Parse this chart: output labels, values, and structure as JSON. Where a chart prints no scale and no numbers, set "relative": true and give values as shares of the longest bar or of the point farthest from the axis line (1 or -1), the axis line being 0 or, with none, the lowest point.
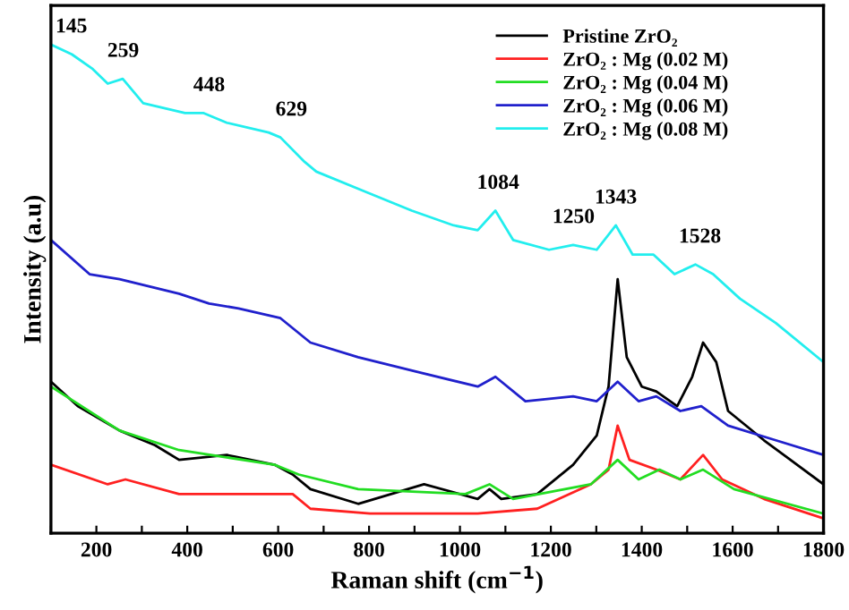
{
  "chart_data": {
    "type": "line",
    "relative": true,
    "xlabel": "Raman shift (cm$^{−1}$)",
    "ylabel": "Intensity (a.u)",
    "xlim": [
      100,
      1800
    ],
    "xticks": [
      {
        "value": 100,
        "label": null
      },
      200,
      {
        "value": 300,
        "label": null
      },
      400,
      {
        "value": 500,
        "label": null
      },
      600,
      {
        "value": 700,
        "label": null
      },
      800,
      {
        "value": 900,
        "label": null
      },
      1000,
      {
        "value": 1100,
        "label": null
      },
      1200,
      {
        "value": 1300,
        "label": null
      },
      1400,
      {
        "value": 1500,
        "label": null
      },
      1600,
      {
        "value": 1700,
        "label": null
      },
      1800
    ],
    "tick_labels": "x",
    "grid": false,
    "legend": "top right",
    "marker": "none",
    "line_style": "solid",
    "series": [
      {
        "name": "Pristine ZrO₂",
        "color": "#000000",
        "x": [
          100,
          159,
          251,
          329,
          382,
          487,
          592,
          632,
          671,
          776,
          921,
          1039,
          1065,
          1091,
          1170,
          1249,
          1301,
          1327,
          1347,
          1367,
          1400,
          1432,
          1478,
          1511,
          1535,
          1564,
          1590,
          1669,
          1800
        ],
        "values": [
          0.31,
          0.26,
          0.21,
          0.18,
          0.15,
          0.16,
          0.14,
          0.12,
          0.09,
          0.06,
          0.1,
          0.07,
          0.09,
          0.07,
          0.08,
          0.14,
          0.2,
          0.3,
          0.52,
          0.36,
          0.3,
          0.29,
          0.26,
          0.32,
          0.39,
          0.35,
          0.25,
          0.19,
          0.1
        ]
      },
      {
        "name": "ZrO₂ : Mg (0.02 M)",
        "color": "#ff2020",
        "x": [
          100,
          225,
          264,
          382,
          632,
          671,
          802,
          1039,
          1170,
          1288,
          1327,
          1347,
          1373,
          1432,
          1485,
          1535,
          1577,
          1669,
          1800
        ],
        "values": [
          0.14,
          0.1,
          0.11,
          0.08,
          0.08,
          0.05,
          0.04,
          0.04,
          0.05,
          0.1,
          0.13,
          0.22,
          0.15,
          0.13,
          0.11,
          0.16,
          0.11,
          0.07,
          0.03
        ]
      },
      {
        "name": "ZrO₂ : Mg (0.04 M)",
        "color": "#22dd22",
        "x": [
          100,
          251,
          382,
          592,
          645,
          776,
          1012,
          1065,
          1117,
          1288,
          1347,
          1393,
          1439,
          1485,
          1535,
          1603,
          1800
        ],
        "values": [
          0.3,
          0.21,
          0.17,
          0.14,
          0.12,
          0.09,
          0.08,
          0.1,
          0.07,
          0.1,
          0.15,
          0.11,
          0.13,
          0.11,
          0.13,
          0.09,
          0.04
        ]
      },
      {
        "name": "ZrO₂ : Mg (0.06 M)",
        "color": "#2020cc",
        "x": [
          100,
          185,
          251,
          382,
          448,
          513,
          605,
          671,
          776,
          907,
          1039,
          1078,
          1144,
          1249,
          1301,
          1347,
          1393,
          1432,
          1485,
          1531,
          1590,
          1695,
          1800
        ],
        "values": [
          0.6,
          0.53,
          0.52,
          0.49,
          0.47,
          0.46,
          0.44,
          0.39,
          0.36,
          0.33,
          0.3,
          0.32,
          0.27,
          0.28,
          0.27,
          0.31,
          0.27,
          0.28,
          0.25,
          0.26,
          0.22,
          0.19,
          0.16
        ]
      },
      {
        "name": "ZrO₂ : Mg (0.08 M)",
        "color": "#22eeee",
        "x": [
          100,
          146,
          192,
          225,
          258,
          303,
          395,
          435,
          487,
          579,
          605,
          658,
          684,
          789,
          894,
          986,
          1039,
          1078,
          1117,
          1196,
          1249,
          1301,
          1343,
          1380,
          1426,
          1472,
          1518,
          1557,
          1616,
          1695,
          1800
        ],
        "values": [
          1.0,
          0.98,
          0.95,
          0.92,
          0.93,
          0.88,
          0.86,
          0.86,
          0.84,
          0.82,
          0.81,
          0.76,
          0.74,
          0.7,
          0.66,
          0.63,
          0.62,
          0.66,
          0.6,
          0.58,
          0.59,
          0.58,
          0.63,
          0.57,
          0.57,
          0.53,
          0.55,
          0.53,
          0.48,
          0.43,
          0.35
        ]
      }
    ],
    "annotations": [
      {
        "text": "145",
        "x": 145,
        "y": 0.98
      },
      {
        "text": "259",
        "x": 259,
        "y": 0.93
      },
      {
        "text": "448",
        "x": 448,
        "y": 0.86
      },
      {
        "text": "629",
        "x": 629,
        "y": 0.81
      },
      {
        "text": "1084",
        "x": 1084,
        "y": 0.66
      },
      {
        "text": "1250",
        "x": 1250,
        "y": 0.59
      },
      {
        "text": "1343",
        "x": 1343,
        "y": 0.63
      },
      {
        "text": "1528",
        "x": 1528,
        "y": 0.55
      }
    ]
  }
}
